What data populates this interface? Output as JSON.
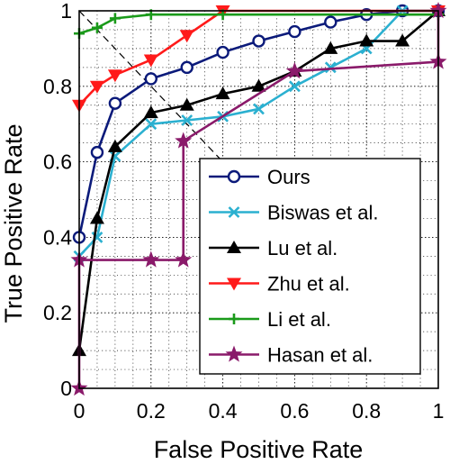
{
  "chart_data": {
    "type": "line",
    "title": "",
    "xlabel": "False Positive Rate",
    "ylabel": "True Positive Rate",
    "xlim": [
      0,
      1
    ],
    "ylim": [
      0,
      1
    ],
    "x_ticks": [
      "0",
      "0.2",
      "0.4",
      "0.6",
      "0.8",
      "1"
    ],
    "y_ticks": [
      "0",
      "0.2",
      "0.4",
      "0.6",
      "0.8",
      "1"
    ],
    "grid": true,
    "grid_style": "dotted",
    "reference_line": {
      "type": "diagonal",
      "from": [
        0,
        1
      ],
      "to": [
        0.5,
        0.5
      ],
      "style": "dashed"
    },
    "legend_position": "lower-right",
    "series": [
      {
        "name": "Ours",
        "color": "#0b1a7a",
        "marker": "circle",
        "x": [
          0,
          0.05,
          0.1,
          0.2,
          0.3,
          0.4,
          0.5,
          0.6,
          0.7,
          0.8,
          0.9,
          1.0
        ],
        "y": [
          0.4,
          0.625,
          0.755,
          0.82,
          0.85,
          0.89,
          0.92,
          0.945,
          0.97,
          0.99,
          1.0,
          1.0
        ]
      },
      {
        "name": "Biswas et al.",
        "color": "#2bb0d0",
        "marker": "x",
        "x": [
          0,
          0.05,
          0.1,
          0.2,
          0.3,
          0.4,
          0.5,
          0.6,
          0.7,
          0.8,
          0.9,
          1.0
        ],
        "y": [
          0.35,
          0.4,
          0.615,
          0.7,
          0.71,
          0.72,
          0.74,
          0.8,
          0.85,
          0.9,
          1.0,
          1.0
        ]
      },
      {
        "name": "Lu et al.",
        "color": "#000000",
        "marker": "triangle-up",
        "x": [
          0,
          0.05,
          0.1,
          0.2,
          0.3,
          0.4,
          0.5,
          0.6,
          0.7,
          0.8,
          0.9,
          1.0
        ],
        "y": [
          0.1,
          0.45,
          0.64,
          0.73,
          0.75,
          0.78,
          0.8,
          0.84,
          0.9,
          0.92,
          0.92,
          1.0
        ]
      },
      {
        "name": "Zhu et al.",
        "color": "#ff1a1a",
        "marker": "triangle-down",
        "x": [
          0,
          0.05,
          0.1,
          0.2,
          0.3,
          0.4,
          1.0
        ],
        "y": [
          0.75,
          0.8,
          0.83,
          0.87,
          0.935,
          1.0,
          1.0
        ]
      },
      {
        "name": "Li et al.",
        "color": "#1a9a1a",
        "marker": "plus",
        "x": [
          0,
          0.05,
          0.1,
          0.2,
          0.4,
          1.0
        ],
        "y": [
          0.94,
          0.955,
          0.98,
          0.99,
          0.99,
          0.99
        ]
      },
      {
        "name": "Hasan et al.",
        "color": "#8a1a6a",
        "marker": "star",
        "x": [
          0,
          0,
          0.2,
          0.29,
          0.29,
          0.6,
          0.6,
          1.0,
          1.0
        ],
        "y": [
          0.0,
          0.34,
          0.34,
          0.34,
          0.655,
          0.84,
          0.84,
          0.865,
          1.0
        ]
      }
    ]
  }
}
